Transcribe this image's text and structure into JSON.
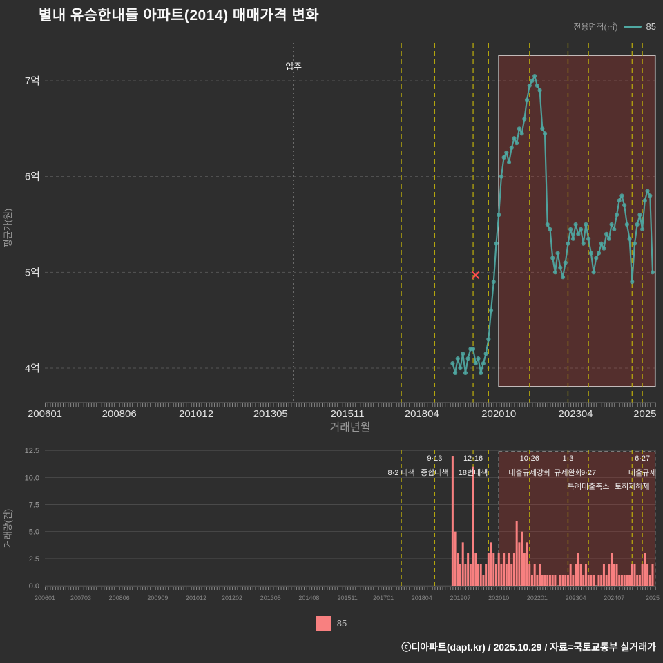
{
  "title": "별내 유승한내들 아파트(2014) 매매가격 변화",
  "top_legend": {
    "label": "전용면적(㎡)",
    "series_label": "85"
  },
  "bottom_legend": {
    "series_label": "85"
  },
  "footer": "ⓒ디아파트(dapt.kr) / 2025.10.29 / 자료=국토교통부 실거래가",
  "colors": {
    "background": "#2e2e2e",
    "price": "#4fa8a2",
    "volume": "#f88080",
    "policy_line": "#b3a50e",
    "grid": "#555555",
    "grid_soft": "#4a4a4a",
    "axis_text": "#e0e0e0",
    "muted_text": "#999999",
    "small_text": "#868686",
    "annotation_text": "#eeeeee",
    "highlight_fill": "rgba(200,50,45,0.25)",
    "highlight_stroke": "#e8e8e8",
    "highlight_dash_stroke": "#aaaaaa",
    "move_in_line": "#b8b8b8",
    "cancel": "#ff4d4d",
    "axis_line": "#6a6a6a",
    "tick": "#8a8a8a"
  },
  "chart_data": [
    {
      "type": "line",
      "name": "price-chart",
      "title": "별내 유승한내들 아파트(2014) 매매가격 변화",
      "xlabel": "거래년월",
      "ylabel": "평균가(원)",
      "unit": "억원",
      "ylim": [
        3.6,
        7.4
      ],
      "x_range": [
        "200601",
        "202512"
      ],
      "grid": true,
      "legend_position": "top-right",
      "y_ticks": [
        {
          "v": 4,
          "label": "4억"
        },
        {
          "v": 5,
          "label": "5억"
        },
        {
          "v": 6,
          "label": "6억"
        },
        {
          "v": 7,
          "label": "7억"
        }
      ],
      "x_ticks": [
        {
          "m": "200601",
          "label": "200601"
        },
        {
          "m": "200806",
          "label": "200806"
        },
        {
          "m": "201012",
          "label": "201012"
        },
        {
          "m": "201305",
          "label": "201305"
        },
        {
          "m": "201511",
          "label": "201511"
        },
        {
          "m": "201804",
          "label": "201804"
        },
        {
          "m": "202010",
          "label": "202010"
        },
        {
          "m": "202304",
          "label": "202304"
        },
        {
          "m": "202507",
          "label": "2025"
        }
      ],
      "move_in": {
        "m": "201402",
        "label": "입주"
      },
      "canceled_tx": {
        "m": "202001",
        "v": 4.97
      },
      "policy_months": [
        "201708",
        "201809",
        "201912",
        "202006",
        "202110",
        "202301",
        "202309",
        "202502",
        "202506"
      ],
      "highlight_region": {
        "from": "202010",
        "to": "202511"
      },
      "series": [
        {
          "name": "85",
          "x": [
            "201904",
            "201905",
            "201906",
            "201907",
            "201908",
            "201909",
            "201910",
            "201911",
            "201912",
            "202001",
            "202002",
            "202003",
            "202004",
            "202005",
            "202006",
            "202007",
            "202008",
            "202009",
            "202010",
            "202011",
            "202012",
            "202101",
            "202102",
            "202103",
            "202104",
            "202105",
            "202106",
            "202107",
            "202108",
            "202109",
            "202110",
            "202111",
            "202112",
            "202201",
            "202202",
            "202203",
            "202204",
            "202205",
            "202206",
            "202207",
            "202208",
            "202209",
            "202210",
            "202211",
            "202212",
            "202301",
            "202302",
            "202303",
            "202304",
            "202305",
            "202306",
            "202307",
            "202308",
            "202309",
            "202310",
            "202311",
            "202312",
            "202401",
            "202402",
            "202403",
            "202404",
            "202405",
            "202406",
            "202407",
            "202408",
            "202409",
            "202410",
            "202411",
            "202412",
            "202501",
            "202502",
            "202503",
            "202504",
            "202505",
            "202506",
            "202507",
            "202508",
            "202509",
            "202510"
          ],
          "y": [
            4.05,
            3.95,
            4.1,
            4.0,
            4.15,
            3.95,
            4.1,
            4.2,
            4.2,
            4.05,
            4.1,
            3.95,
            4.05,
            4.15,
            4.3,
            4.6,
            4.9,
            5.3,
            5.6,
            6.0,
            6.2,
            6.25,
            6.15,
            6.3,
            6.4,
            6.35,
            6.5,
            6.45,
            6.6,
            6.8,
            6.95,
            7.0,
            7.05,
            6.95,
            6.9,
            6.5,
            6.45,
            5.5,
            5.45,
            5.15,
            5.0,
            5.2,
            5.05,
            4.95,
            5.1,
            5.3,
            5.45,
            5.35,
            5.5,
            5.4,
            5.45,
            5.3,
            5.5,
            5.35,
            5.2,
            5.0,
            5.15,
            5.2,
            5.3,
            5.25,
            5.4,
            5.35,
            5.5,
            5.45,
            5.6,
            5.75,
            5.8,
            5.7,
            5.5,
            5.35,
            4.9,
            5.3,
            5.5,
            5.6,
            5.45,
            5.75,
            5.85,
            5.8,
            5.0
          ]
        }
      ]
    },
    {
      "type": "bar",
      "name": "volume-chart",
      "xlabel": "",
      "ylabel": "거래량(건)",
      "ylim": [
        0,
        12.5
      ],
      "grid": true,
      "y_ticks": [
        {
          "v": 12.5,
          "label": "12.5"
        },
        {
          "v": 10.0,
          "label": "10.0"
        },
        {
          "v": 7.5,
          "label": "7.5"
        },
        {
          "v": 5.0,
          "label": "5.0"
        },
        {
          "v": 2.5,
          "label": "2.5"
        },
        {
          "v": 0.0,
          "label": "0.0"
        }
      ],
      "x_ticks": [
        {
          "m": "200601",
          "label": "200601"
        },
        {
          "m": "200703",
          "label": "200703"
        },
        {
          "m": "200806",
          "label": "200806"
        },
        {
          "m": "200909",
          "label": "200909"
        },
        {
          "m": "201012",
          "label": "201012"
        },
        {
          "m": "201202",
          "label": "201202"
        },
        {
          "m": "201305",
          "label": "201305"
        },
        {
          "m": "201408",
          "label": "201408"
        },
        {
          "m": "201511",
          "label": "201511"
        },
        {
          "m": "201701",
          "label": "201701"
        },
        {
          "m": "201804",
          "label": "201804"
        },
        {
          "m": "201907",
          "label": "201907"
        },
        {
          "m": "202010",
          "label": "202010"
        },
        {
          "m": "202201",
          "label": "202201"
        },
        {
          "m": "202304",
          "label": "202304"
        },
        {
          "m": "202407",
          "label": "202407"
        },
        {
          "m": "202510",
          "label": "2025"
        }
      ],
      "policy_annotations": [
        {
          "m": "201708",
          "row": 2,
          "lines": [
            "8·2 대책"
          ]
        },
        {
          "m": "201809",
          "row": 1,
          "lines": [
            "9·13",
            "종합대책"
          ]
        },
        {
          "m": "201912",
          "row": 1,
          "lines": [
            "12·16",
            "18번대책"
          ]
        },
        {
          "m": "202110",
          "row": 1,
          "lines": [
            "10·26",
            "대출규제강화"
          ]
        },
        {
          "m": "202301",
          "row": 1,
          "lines": [
            "1·3",
            "규제완화"
          ]
        },
        {
          "m": "202309",
          "row": 2,
          "lines": [
            "9·27",
            "특례대출축소"
          ]
        },
        {
          "m": "202502",
          "row": 3,
          "lines": [
            "토허제해제"
          ]
        },
        {
          "m": "202506",
          "row": 1,
          "lines": [
            "6·27",
            "대출규제"
          ]
        }
      ],
      "policy_months": [
        "201708",
        "201809",
        "201912",
        "202006",
        "202110",
        "202301",
        "202309",
        "202502",
        "202506"
      ],
      "highlight_region": {
        "from": "202010",
        "to": "202511"
      },
      "series": [
        {
          "name": "85",
          "x": [
            "201904",
            "201905",
            "201906",
            "201907",
            "201908",
            "201909",
            "201910",
            "201911",
            "201912",
            "202001",
            "202002",
            "202003",
            "202004",
            "202005",
            "202006",
            "202007",
            "202008",
            "202009",
            "202010",
            "202011",
            "202012",
            "202101",
            "202102",
            "202103",
            "202104",
            "202105",
            "202106",
            "202107",
            "202108",
            "202109",
            "202110",
            "202111",
            "202112",
            "202201",
            "202202",
            "202203",
            "202204",
            "202205",
            "202206",
            "202207",
            "202208",
            "202209",
            "202210",
            "202211",
            "202212",
            "202301",
            "202302",
            "202303",
            "202304",
            "202305",
            "202306",
            "202307",
            "202308",
            "202309",
            "202310",
            "202311",
            "202312",
            "202401",
            "202402",
            "202403",
            "202404",
            "202405",
            "202406",
            "202407",
            "202408",
            "202409",
            "202410",
            "202411",
            "202412",
            "202501",
            "202502",
            "202503",
            "202504",
            "202505",
            "202506",
            "202507",
            "202508",
            "202509",
            "202510"
          ],
          "y": [
            12,
            5,
            3,
            2,
            4,
            2,
            3,
            2,
            11,
            3,
            2,
            2,
            1,
            2,
            3,
            4,
            3,
            2,
            3,
            2,
            3,
            2,
            3,
            2,
            3,
            6,
            4,
            5,
            3,
            4,
            2,
            1,
            2,
            1,
            2,
            1,
            1,
            1,
            1,
            1,
            1,
            0,
            1,
            1,
            1,
            1,
            2,
            1,
            2,
            3,
            2,
            1,
            2,
            1,
            1,
            1,
            0,
            1,
            1,
            2,
            1,
            2,
            3,
            2,
            2,
            1,
            1,
            1,
            1,
            1,
            2,
            2,
            1,
            1,
            2,
            3,
            2,
            1,
            2
          ]
        }
      ]
    }
  ]
}
